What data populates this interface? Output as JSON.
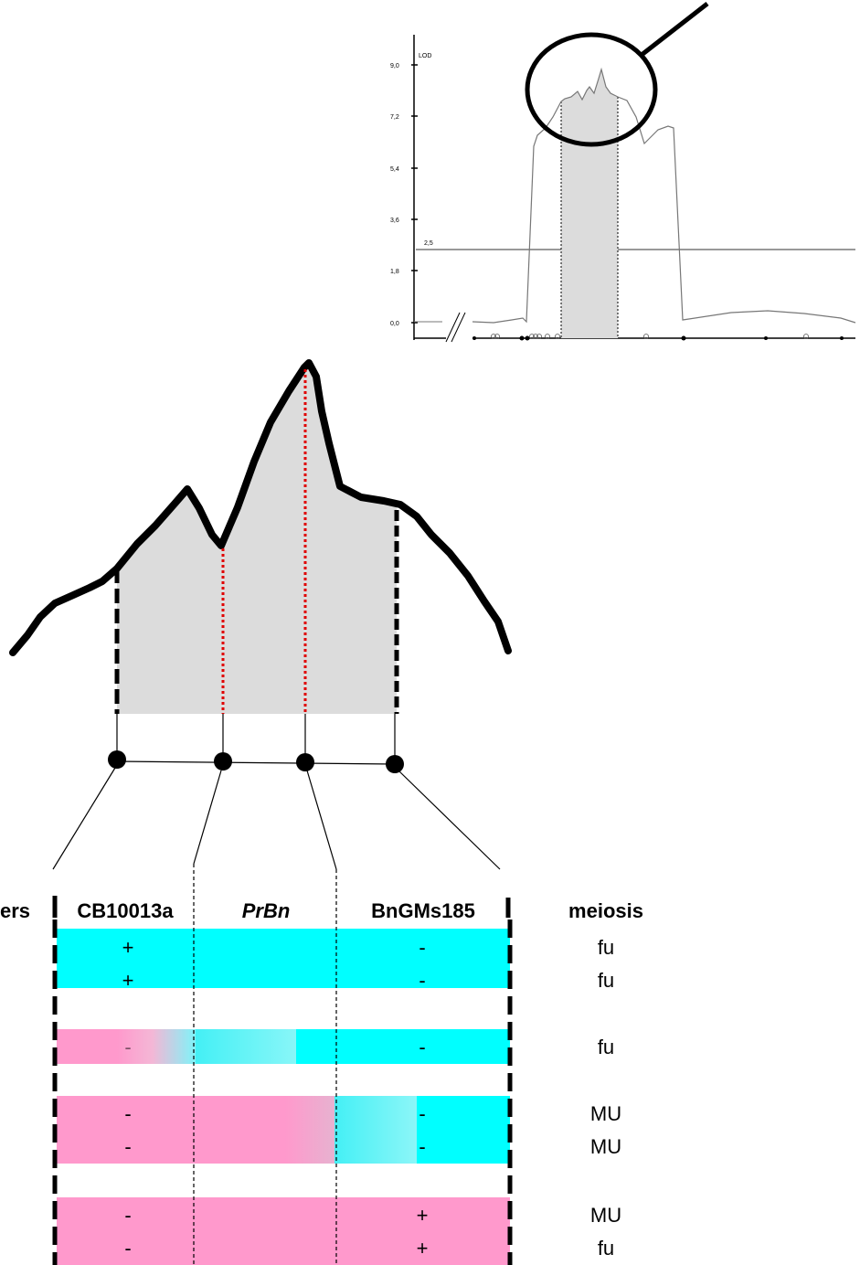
{
  "lod_plot": {
    "y_ticks": [
      "9,0",
      "7,2",
      "5,4",
      "3,6",
      "1,8",
      "0,0"
    ],
    "y_top_label": "LOD",
    "threshold_label": "2,5"
  },
  "table": {
    "headers": {
      "markers": "ers",
      "m1": "CB10013a",
      "m2": "PrBn",
      "m3": "BnGMs185",
      "meiosis": "meiosis"
    },
    "rows": [
      {
        "m1": "+",
        "m3": "-",
        "meiosis": "fu"
      },
      {
        "m1": "+",
        "m3": "-",
        "meiosis": "fu"
      },
      {
        "m1": "-",
        "m3": "-",
        "meiosis": "fu"
      },
      {
        "m1": "-",
        "m3": "-",
        "meiosis": "MU"
      },
      {
        "m1": "-",
        "m3": "-",
        "meiosis": "MU"
      },
      {
        "m1": "-",
        "m3": "+",
        "meiosis": "MU"
      },
      {
        "m1": "-",
        "m3": "+",
        "meiosis": "fu"
      }
    ]
  },
  "colors": {
    "cyan": "#00FFFF",
    "pink": "#FF99CC",
    "gray_fill": "#DCDCDC",
    "red_dotted": "#E00000"
  }
}
